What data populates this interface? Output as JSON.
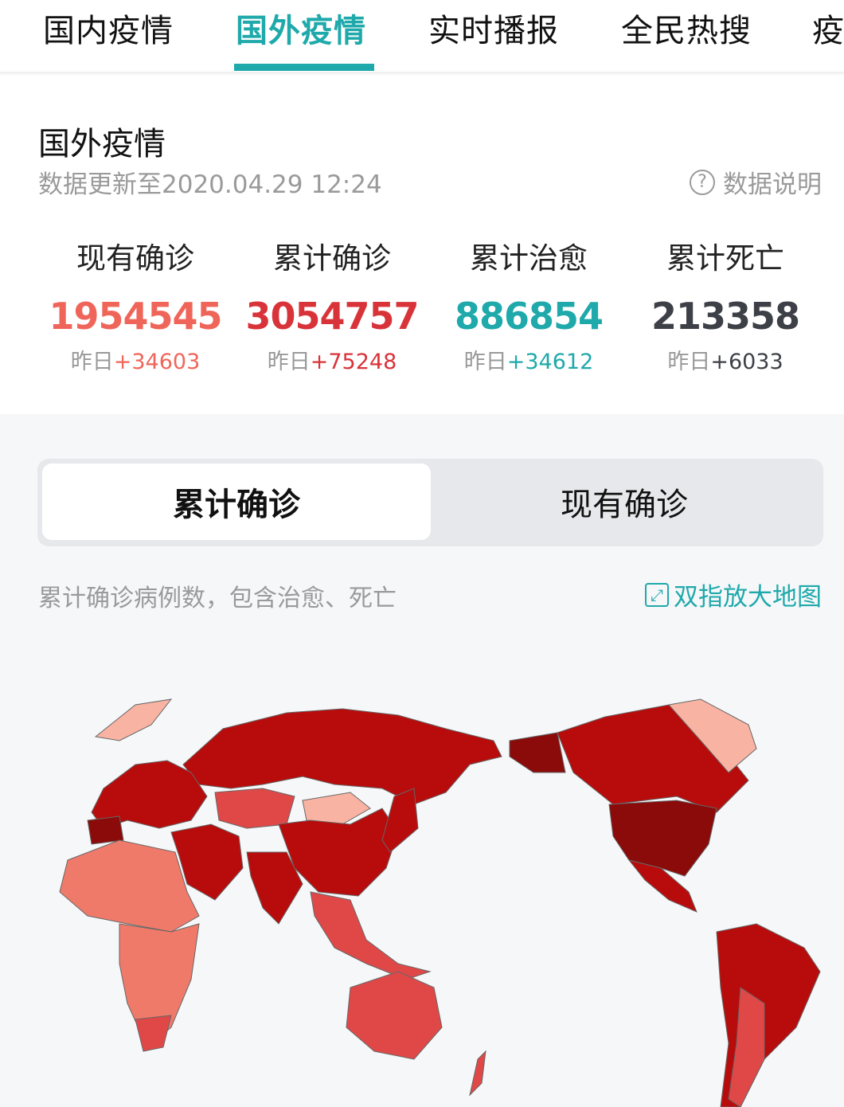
{
  "tabs": [
    {
      "label": "国内疫情"
    },
    {
      "label": "国外疫情",
      "active": true
    },
    {
      "label": "实时播报"
    },
    {
      "label": "全民热搜"
    },
    {
      "label": "疫"
    }
  ],
  "summary": {
    "title": "国外疫情",
    "updated": "数据更新至2020.04.29 12:24",
    "help_label": "数据说明",
    "help_icon": "question-circle-icon",
    "stats": [
      {
        "label": "现有确诊",
        "value": "1954545",
        "delta_prefix": "昨日",
        "delta": "+34603",
        "color": "#f0655a"
      },
      {
        "label": "累计确诊",
        "value": "3054757",
        "delta_prefix": "昨日",
        "delta": "+75248",
        "color": "#d9333a"
      },
      {
        "label": "累计治愈",
        "value": "886854",
        "delta_prefix": "昨日",
        "delta": "+34612",
        "color": "#1fa9ab"
      },
      {
        "label": "累计死亡",
        "value": "213358",
        "delta_prefix": "昨日",
        "delta": "+6033",
        "color": "#3d4046"
      }
    ]
  },
  "toggle": {
    "selected": "累计确诊",
    "other": "现有确诊"
  },
  "map": {
    "note": "累计确诊病例数，包含治愈、死亡",
    "zoom_label": "双指放大地图",
    "zoom_icon": "expand-icon",
    "colors": {
      "darkest": "#8b0a0a",
      "dark": "#b80c0c",
      "mid": "#e04848",
      "light": "#f07a6a",
      "lighter": "#f9b3a3"
    }
  }
}
